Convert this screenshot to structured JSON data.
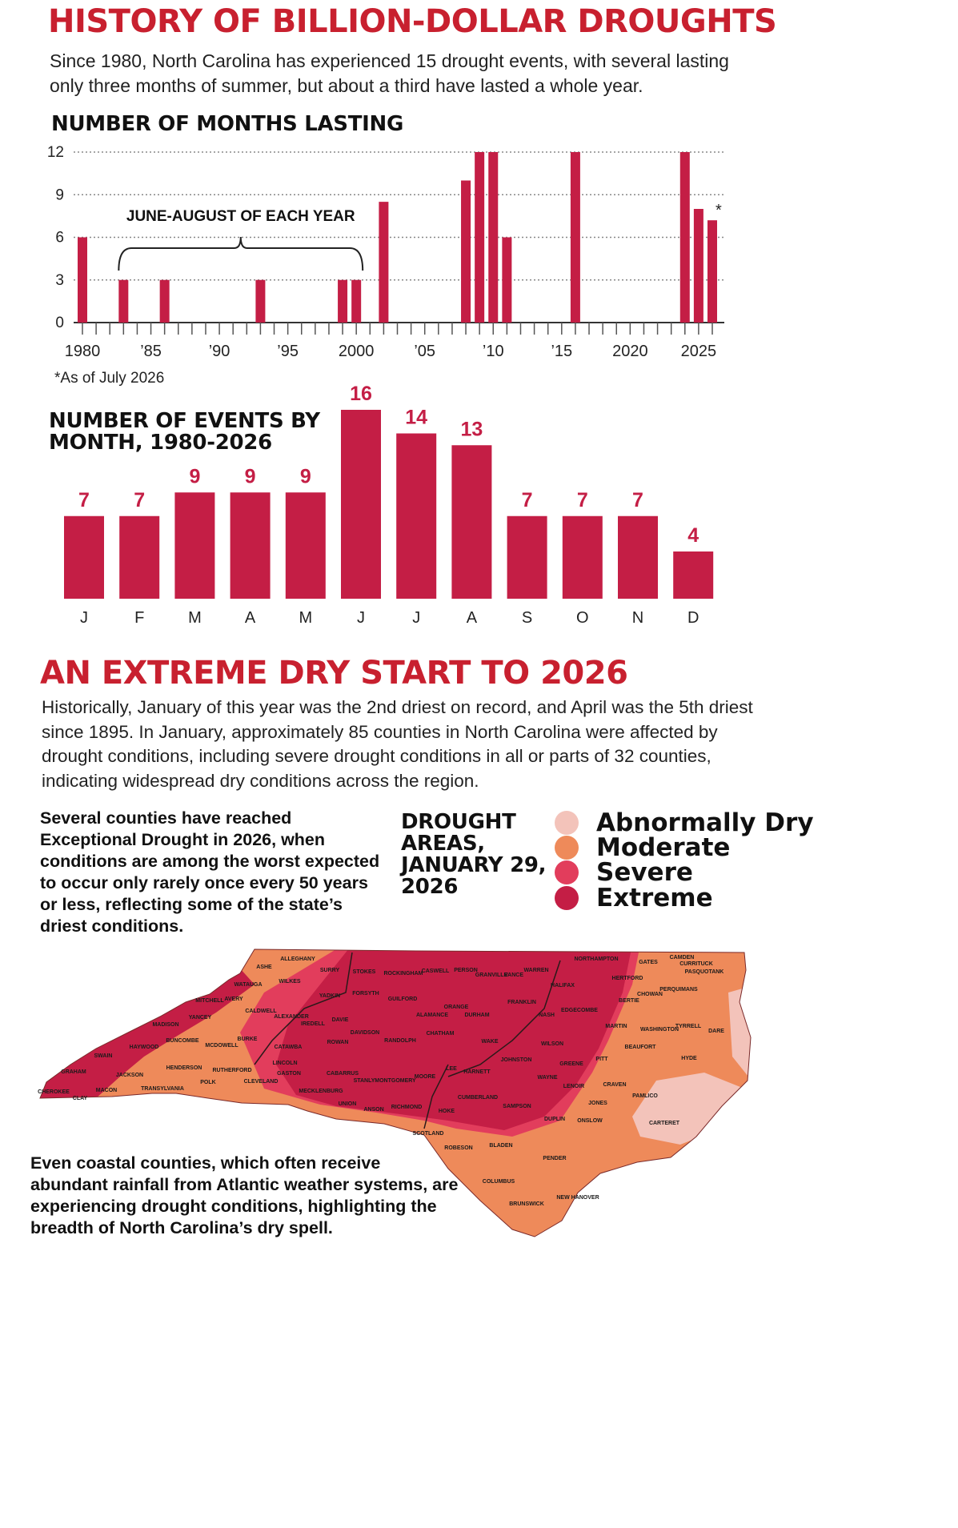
{
  "title": "HISTORY OF BILLION-DOLLAR DROUGHTS",
  "intro": "Since 1980, North Carolina has experienced 15 drought events, with several lasting only three months of summer, but about a third have lasted a whole year.",
  "colors": {
    "accent": "#c8202f",
    "bar": "#c41e45",
    "abnormally_dry": "#f3c3ba",
    "moderate": "#ee8a5a",
    "severe": "#e23d5c",
    "extreme": "#c41e45"
  },
  "chart_data": [
    {
      "type": "bar",
      "title": "NUMBER OF MONTHS LASTING",
      "xlabel": "",
      "ylabel": "",
      "x_tick_labels": [
        "1980",
        "’85",
        "’90",
        "’95",
        "2000",
        "’05",
        "’10",
        "’15",
        "2020",
        "2025"
      ],
      "x_tick_values": [
        1980,
        1985,
        1990,
        1995,
        2000,
        2005,
        2010,
        2015,
        2020,
        2025
      ],
      "y_ticks": [
        0,
        3,
        6,
        9,
        12
      ],
      "ylim": [
        0,
        12
      ],
      "xlim": [
        1980,
        2026
      ],
      "grid": true,
      "x": [
        1980,
        1983,
        1986,
        1993,
        1999,
        2000,
        2002,
        2008,
        2009,
        2010,
        2011,
        2016,
        2024,
        2025,
        2026
      ],
      "values": [
        6,
        3,
        3,
        3,
        3,
        3,
        8.5,
        10,
        12,
        12,
        6,
        12,
        12,
        8,
        7.2
      ],
      "annotations": {
        "bracket_label": "JUNE-AUGUST OF EACH YEAR",
        "bracket_from": 1983,
        "bracket_to": 2000,
        "asterisk": "*",
        "footnote": "*As of July 2026"
      }
    },
    {
      "type": "bar",
      "title": "NUMBER OF EVENTS BY MONTH, 1980-2026",
      "categories": [
        "J",
        "F",
        "M",
        "A",
        "M",
        "J",
        "J",
        "A",
        "S",
        "O",
        "N",
        "D"
      ],
      "values": [
        7,
        7,
        9,
        9,
        9,
        16,
        14,
        13,
        7,
        7,
        7,
        4
      ],
      "ylim": [
        0,
        16
      ],
      "grid": false
    }
  ],
  "section2": {
    "title": "AN EXTREME DRY START TO 2026",
    "body": "Historically, January of this year was the 2nd driest on record, and April was the 5th driest since 1895. In January, approximately 85 counties in North Carolina were affected by drought conditions, including severe drought conditions in all or parts of 32 counties, indicating widespread dry conditions across the region."
  },
  "note_top": "Several counties have reached Exceptional Drought in 2026, when conditions are among the worst expected to occur only rarely once every 50 years or less, reflecting some of the state’s driest conditions.",
  "note_bottom": "Even coastal counties, which often receive abundant rainfall from Atlantic weather systems, are experiencing drought conditions, highlighting the breadth of North Carolina’s dry spell.",
  "map": {
    "title": "DROUGHT AREAS, JANUARY 29, 2026",
    "legend": [
      {
        "label": "Abnormally Dry",
        "color": "#f3c3ba"
      },
      {
        "label": "Moderate",
        "color": "#ee8a5a"
      },
      {
        "label": "Severe",
        "color": "#e23d5c"
      },
      {
        "label": "Extreme",
        "color": "#c41e45"
      }
    ],
    "counties": [
      "ALLEGHANY",
      "ASHE",
      "SURRY",
      "STOKES",
      "ROCKINGHAM",
      "CASWELL",
      "PERSON",
      "GRANVILLE",
      "VANCE",
      "WARREN",
      "NORTHAMPTON",
      "GATES",
      "CURRITUCK",
      "CAMDEN",
      "PASQUOTANK",
      "PERQUIMANS",
      "CHOWAN",
      "HERTFORD",
      "BERTIE",
      "HALIFAX",
      "WATAUGA",
      "WILKES",
      "YADKIN",
      "FORSYTH",
      "GUILFORD",
      "ALAMANCE",
      "ORANGE",
      "DURHAM",
      "FRANKLIN",
      "NASH",
      "EDGECOMBE",
      "MARTIN",
      "WASHINGTON",
      "TYRRELL",
      "DARE",
      "MITCHELL",
      "AVERY",
      "CALDWELL",
      "ALEXANDER",
      "DAVIE",
      "DAVIDSON",
      "RANDOLPH",
      "CHATHAM",
      "WAKE",
      "WILSON",
      "BEAUFORT",
      "HYDE",
      "YANCEY",
      "MADISON",
      "BUNCOMBE",
      "BURKE",
      "IREDELL",
      "ROWAN",
      "JOHNSTON",
      "GREENE",
      "PITT",
      "SWAIN",
      "HAYWOOD",
      "MCDOWELL",
      "CATAWBA",
      "LEE",
      "HARNETT",
      "WAYNE",
      "LENOIR",
      "CRAVEN",
      "PAMLICO",
      "GRAHAM",
      "JACKSON",
      "HENDERSON",
      "RUTHERFORD",
      "LINCOLN",
      "CABARRUS",
      "STANLY",
      "MONTGOMERY",
      "MOORE",
      "CUMBERLAND",
      "SAMPSON",
      "JONES",
      "CARTERET",
      "CHEROKEE",
      "MACON",
      "TRANSYLVANIA",
      "POLK",
      "CLEVELAND",
      "GASTON",
      "MECKLENBURG",
      "UNION",
      "ANSON",
      "RICHMOND",
      "HOKE",
      "DUPLIN",
      "ONSLOW",
      "CLAY",
      "SCOTLAND",
      "ROBESON",
      "BLADEN",
      "PENDER",
      "COLUMBUS",
      "BRUNSWICK",
      "NEW HANOVER"
    ]
  }
}
